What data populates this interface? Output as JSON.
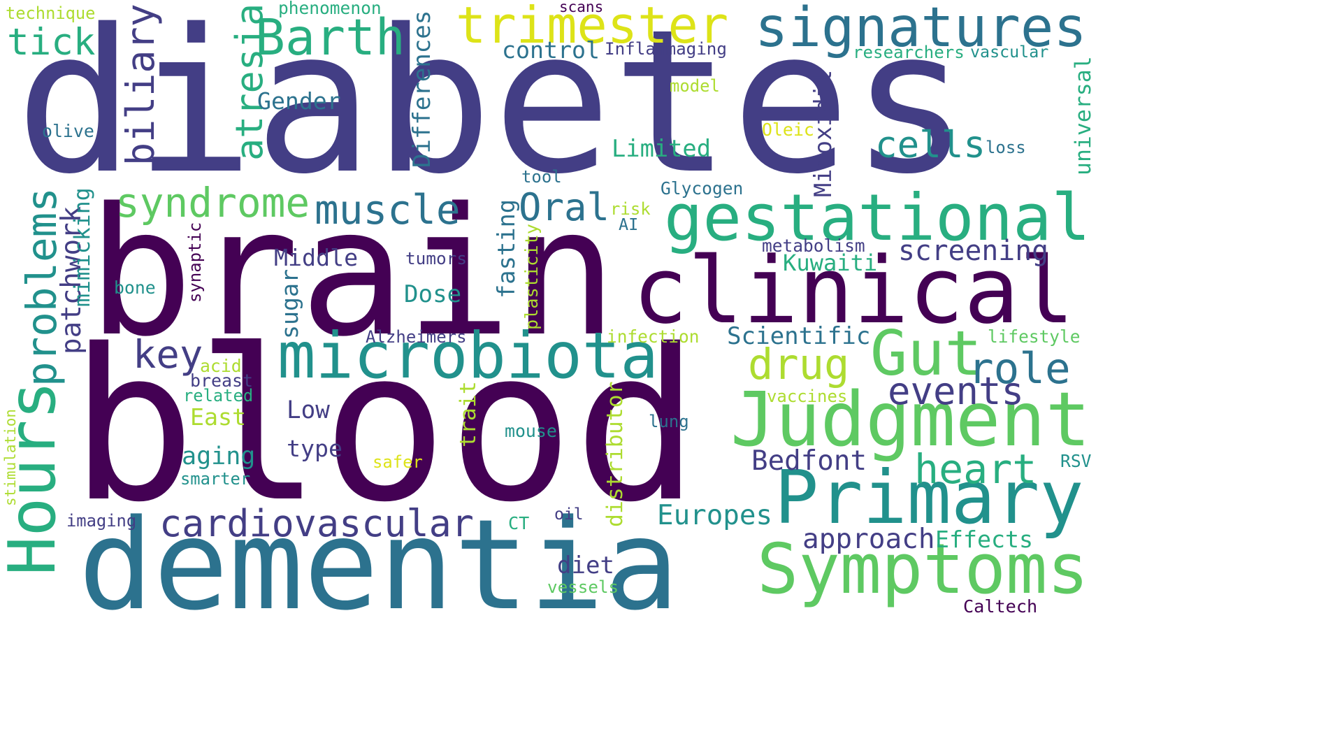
{
  "cloud": {
    "palette": {
      "c1": "#440154",
      "c2": "#433e85",
      "c3": "#2c728e",
      "c4": "#21918c",
      "c5": "#28ae80",
      "c6": "#5ec962",
      "c7": "#addc30",
      "c8": "#dde318"
    },
    "words": [
      {
        "text": "diabetes",
        "color": "#433e85",
        "vertical": false
      },
      {
        "text": "brain",
        "color": "#440154",
        "vertical": false
      },
      {
        "text": "blood",
        "color": "#440154",
        "vertical": false
      },
      {
        "text": "dementia",
        "color": "#2c728e",
        "vertical": false
      },
      {
        "text": "clinical",
        "color": "#440154",
        "vertical": false
      },
      {
        "text": "gestational",
        "color": "#28ae80",
        "vertical": false
      },
      {
        "text": "Judgment",
        "color": "#5ec962",
        "vertical": false
      },
      {
        "text": "Primary",
        "color": "#21918c",
        "vertical": false
      },
      {
        "text": "Symptoms",
        "color": "#5ec962",
        "vertical": false
      },
      {
        "text": "Hours",
        "color": "#28ae80",
        "vertical": true
      },
      {
        "text": "microbiota",
        "color": "#21918c",
        "vertical": false
      },
      {
        "text": "signatures",
        "color": "#2c728e",
        "vertical": false
      },
      {
        "text": "trimester",
        "color": "#dde318",
        "vertical": false
      },
      {
        "text": "Barth",
        "color": "#28ae80",
        "vertical": false
      },
      {
        "text": "Gut",
        "color": "#5ec962",
        "vertical": false
      },
      {
        "text": "cardiovascular",
        "color": "#433e85",
        "vertical": false
      },
      {
        "text": "syndrome",
        "color": "#5ec962",
        "vertical": false
      },
      {
        "text": "muscle",
        "color": "#2c728e",
        "vertical": false
      },
      {
        "text": "heart",
        "color": "#28ae80",
        "vertical": false
      },
      {
        "text": "events",
        "color": "#433e85",
        "vertical": false
      },
      {
        "text": "role",
        "color": "#2c728e",
        "vertical": false
      },
      {
        "text": "drug",
        "color": "#addc30",
        "vertical": false
      },
      {
        "text": "key",
        "color": "#433e85",
        "vertical": false
      },
      {
        "text": "Oral",
        "color": "#2c728e",
        "vertical": false
      },
      {
        "text": "cells",
        "color": "#21918c",
        "vertical": false
      },
      {
        "text": "screening",
        "color": "#433e85",
        "vertical": false
      },
      {
        "text": "approach",
        "color": "#433e85",
        "vertical": false
      },
      {
        "text": "Europes",
        "color": "#21918c",
        "vertical": false
      },
      {
        "text": "Bedfont",
        "color": "#433e85",
        "vertical": false
      },
      {
        "text": "tick",
        "color": "#28ae80",
        "vertical": false
      },
      {
        "text": "biliary",
        "color": "#433e85",
        "vertical": true
      },
      {
        "text": "atresia",
        "color": "#28ae80",
        "vertical": true
      },
      {
        "text": "problems",
        "color": "#21918c",
        "vertical": true
      },
      {
        "text": "patchwork",
        "color": "#433e85",
        "vertical": true
      },
      {
        "text": "Scientific",
        "color": "#2c728e",
        "vertical": false
      },
      {
        "text": "Effects",
        "color": "#28ae80",
        "vertical": false
      },
      {
        "text": "diet",
        "color": "#433e85",
        "vertical": false
      },
      {
        "text": "Dose",
        "color": "#21918c",
        "vertical": false
      },
      {
        "text": "Limited",
        "color": "#28ae80",
        "vertical": false
      },
      {
        "text": "Gender",
        "color": "#2c728e",
        "vertical": false
      },
      {
        "text": "control",
        "color": "#2c728e",
        "vertical": false
      },
      {
        "text": "Middle",
        "color": "#433e85",
        "vertical": false
      },
      {
        "text": "Kuwaiti",
        "color": "#28ae80",
        "vertical": false
      },
      {
        "text": "aging",
        "color": "#21918c",
        "vertical": false
      },
      {
        "text": "East",
        "color": "#addc30",
        "vertical": false
      },
      {
        "text": "Low",
        "color": "#433e85",
        "vertical": false
      },
      {
        "text": "type",
        "color": "#433e85",
        "vertical": false
      },
      {
        "text": "Differences",
        "color": "#2c728e",
        "vertical": true
      },
      {
        "text": "Minoxidil",
        "color": "#433e85",
        "vertical": true
      },
      {
        "text": "fasting",
        "color": "#2c728e",
        "vertical": true
      },
      {
        "text": "sugar",
        "color": "#2c728e",
        "vertical": true
      },
      {
        "text": "mimicking",
        "color": "#21918c",
        "vertical": true
      },
      {
        "text": "distributor",
        "color": "#addc30",
        "vertical": true
      },
      {
        "text": "trait",
        "color": "#addc30",
        "vertical": true
      },
      {
        "text": "universal",
        "color": "#28ae80",
        "vertical": true
      },
      {
        "text": "plasticity",
        "color": "#addc30",
        "vertical": true
      },
      {
        "text": "synaptic",
        "color": "#440154",
        "vertical": true
      },
      {
        "text": "stimulation",
        "color": "#addc30",
        "vertical": true
      },
      {
        "text": "Alzheimers",
        "color": "#433e85",
        "vertical": false
      },
      {
        "text": "infection",
        "color": "#addc30",
        "vertical": false
      },
      {
        "text": "lifestyle",
        "color": "#5ec962",
        "vertical": false
      },
      {
        "text": "tumors",
        "color": "#433e85",
        "vertical": false
      },
      {
        "text": "metabolism",
        "color": "#433e85",
        "vertical": false
      },
      {
        "text": "Inflammaging",
        "color": "#433e85",
        "vertical": false
      },
      {
        "text": "Glycogen",
        "color": "#2c728e",
        "vertical": false
      },
      {
        "text": "researchers",
        "color": "#28ae80",
        "vertical": false
      },
      {
        "text": "vascular",
        "color": "#21918c",
        "vertical": false
      },
      {
        "text": "phenomenon",
        "color": "#28ae80",
        "vertical": false
      },
      {
        "text": "technique",
        "color": "#addc30",
        "vertical": false
      },
      {
        "text": "scans",
        "color": "#440154",
        "vertical": false
      },
      {
        "text": "olive",
        "color": "#2c728e",
        "vertical": false
      },
      {
        "text": "model",
        "color": "#addc30",
        "vertical": false
      },
      {
        "text": "Oleic",
        "color": "#dde318",
        "vertical": false
      },
      {
        "text": "loss",
        "color": "#2c728e",
        "vertical": false
      },
      {
        "text": "tool",
        "color": "#2c728e",
        "vertical": false
      },
      {
        "text": "risk",
        "color": "#addc30",
        "vertical": false
      },
      {
        "text": "AI",
        "color": "#2c728e",
        "vertical": false
      },
      {
        "text": "bone",
        "color": "#21918c",
        "vertical": false
      },
      {
        "text": "acid",
        "color": "#addc30",
        "vertical": false
      },
      {
        "text": "breast",
        "color": "#433e85",
        "vertical": false
      },
      {
        "text": "related",
        "color": "#28ae80",
        "vertical": false
      },
      {
        "text": "smarter",
        "color": "#21918c",
        "vertical": false
      },
      {
        "text": "imaging",
        "color": "#433e85",
        "vertical": false
      },
      {
        "text": "mouse",
        "color": "#21918c",
        "vertical": false
      },
      {
        "text": "lung",
        "color": "#2c728e",
        "vertical": false
      },
      {
        "text": "safer",
        "color": "#dde318",
        "vertical": false
      },
      {
        "text": "vaccines",
        "color": "#addc30",
        "vertical": false
      },
      {
        "text": "RSV",
        "color": "#21918c",
        "vertical": false
      },
      {
        "text": "CT",
        "color": "#28ae80",
        "vertical": false
      },
      {
        "text": "oil",
        "color": "#433e85",
        "vertical": false
      },
      {
        "text": "vessels",
        "color": "#5ec962",
        "vertical": false
      },
      {
        "text": "Caltech",
        "color": "#440154",
        "vertical": false
      }
    ]
  }
}
